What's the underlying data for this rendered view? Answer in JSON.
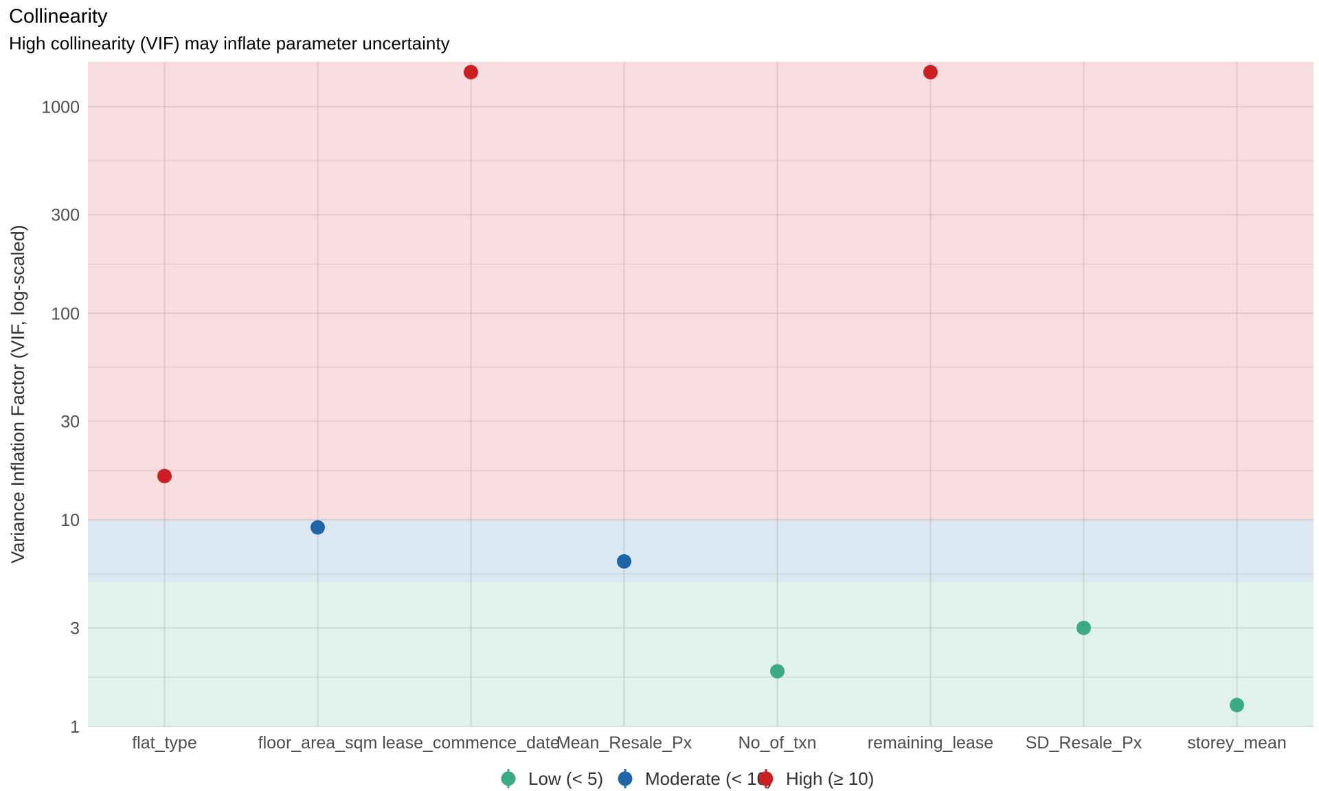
{
  "chart_data": {
    "type": "scatter",
    "title": "Collinearity",
    "subtitle": "High collinearity (VIF) may inflate parameter uncertainty",
    "xlabel": "",
    "ylabel": "Variance Inflation Factor (VIF, log-scaled)",
    "y_scale": "log",
    "ylim": [
      1,
      1650
    ],
    "y_ticks": [
      1,
      3,
      10,
      30,
      100,
      300,
      1000
    ],
    "y_tick_labels": [
      "1",
      "3",
      "10",
      "30",
      "100",
      "300",
      "1000"
    ],
    "categories": [
      "flat_type",
      "floor_area_sqm",
      "lease_commence_date",
      "Mean_Resale_Px",
      "No_of_txn",
      "remaining_lease",
      "SD_Resale_Px",
      "storey_mean"
    ],
    "values": [
      16.3,
      9.2,
      1470,
      6.3,
      1.85,
      1470,
      3.0,
      1.27
    ],
    "groups": [
      "High",
      "Moderate",
      "High",
      "Moderate",
      "Low",
      "High",
      "Low",
      "Low"
    ],
    "bands": [
      {
        "group": "Low",
        "from": 1,
        "to": 5,
        "color": "#e1f2ec"
      },
      {
        "group": "Moderate",
        "from": 5,
        "to": 10,
        "color": "#dce8f1"
      },
      {
        "group": "High",
        "from": 10,
        "to": 1650,
        "color": "#f8dde0"
      }
    ],
    "grid": true,
    "legend_position": "bottom",
    "legend": [
      {
        "group": "Low",
        "label": "Low (< 5)",
        "color": "#3aab82"
      },
      {
        "group": "Moderate",
        "label": "Moderate (< 10)",
        "color": "#1f66a8"
      },
      {
        "group": "High",
        "label": "High (≥ 10)",
        "color": "#cc1f21"
      }
    ]
  }
}
